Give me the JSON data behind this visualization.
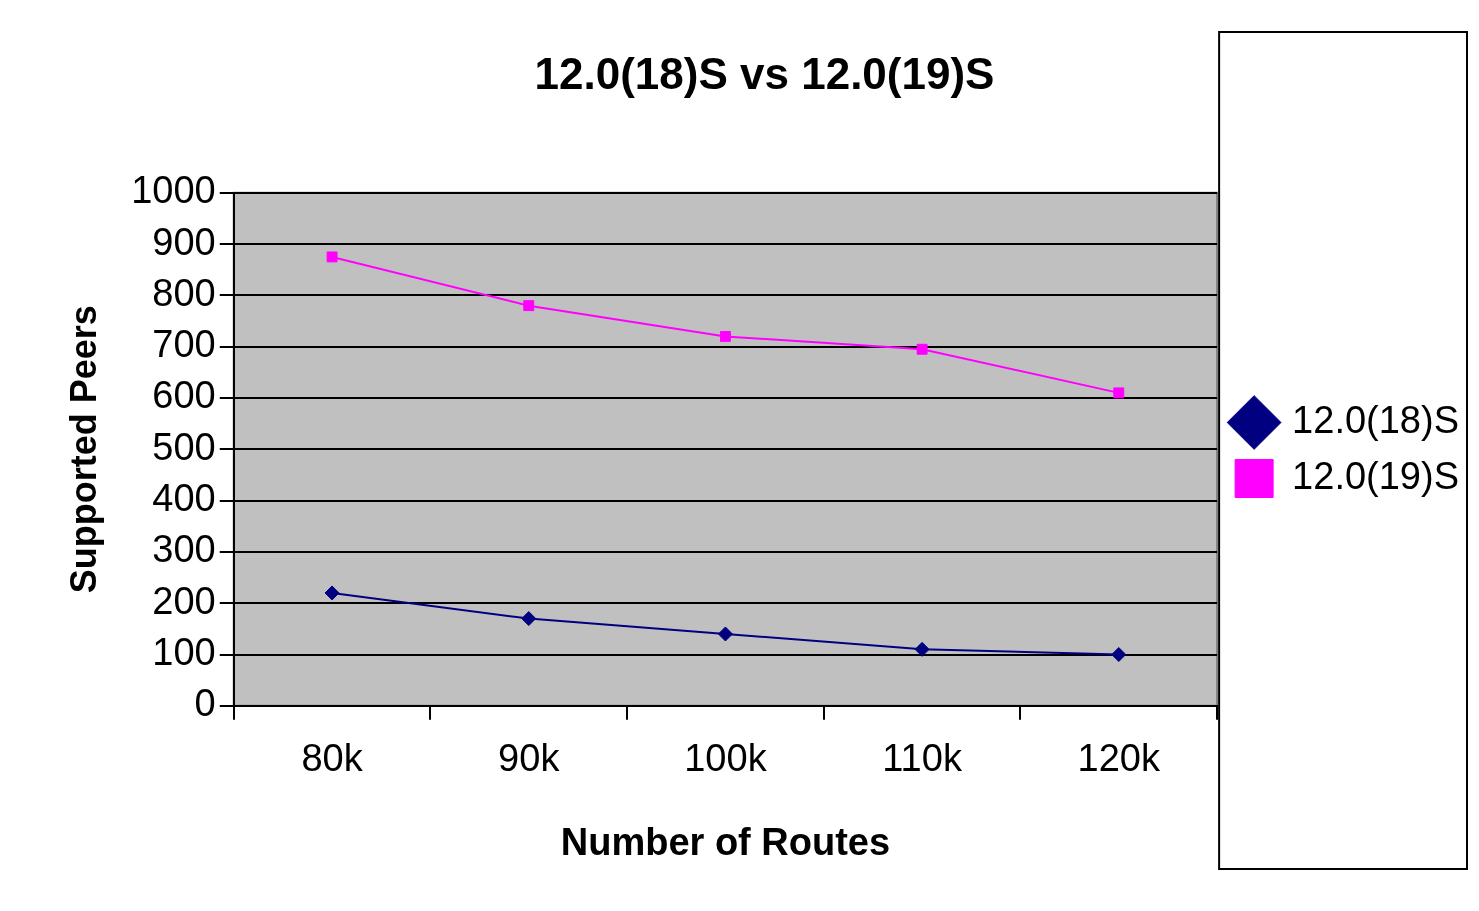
{
  "chart_data": {
    "type": "line",
    "title": "12.0(18)S vs 12.0(19)S",
    "xlabel": "Number of Routes",
    "ylabel": "Supported Peers",
    "categories": [
      "80k",
      "90k",
      "100k",
      "110k",
      "120k"
    ],
    "series": [
      {
        "name": "12.0(18)S",
        "color": "#000080",
        "marker": "diamond",
        "values": [
          220,
          170,
          140,
          110,
          100
        ]
      },
      {
        "name": "12.0(19)S",
        "color": "#ff00ff",
        "marker": "square",
        "values": [
          875,
          780,
          720,
          695,
          610
        ]
      }
    ],
    "ylim": [
      0,
      1000
    ],
    "yticks": [
      0,
      100,
      200,
      300,
      400,
      500,
      600,
      700,
      800,
      900,
      1000
    ],
    "grid": "y",
    "legend": "right",
    "line_style": "solid"
  }
}
